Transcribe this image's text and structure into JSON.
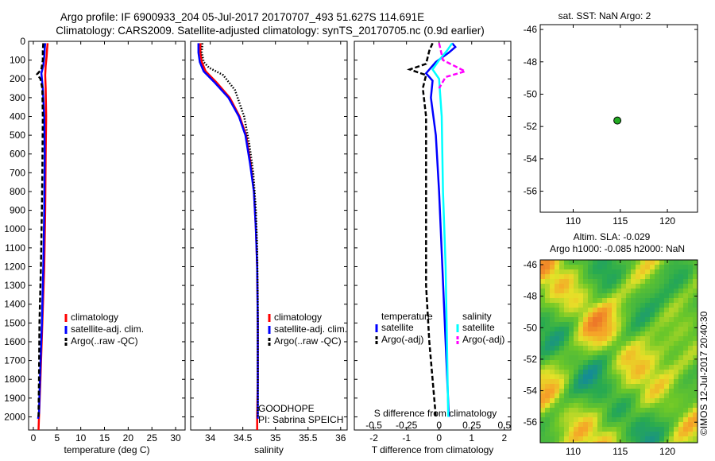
{
  "title_line1": "Argo profile: IF 6900933_204 05-Jul-2017 20170707_493 51.627S 114.691E",
  "title_line2": "Climatology: CARS2009. Satellite-adjusted climatology: synTS_20170705.nc (0.9d earlier)",
  "side_stamp": "©IMOS 12-Jul-2017 20:40:30",
  "colors": {
    "climatology": "#ff0000",
    "satellite": "#0000ff",
    "argo": "#000000",
    "salinity_satellite": "#00ffff",
    "salinity_argo": "#ff00ff",
    "dot": "#22aa22"
  },
  "chart_data": [
    {
      "type": "line",
      "id": "temperature",
      "xlabel": "temperature (deg C)",
      "ylabel": "",
      "xlim": [
        -1,
        32
      ],
      "ylim": [
        2070,
        0
      ],
      "xticks": [
        0,
        5,
        10,
        15,
        20,
        25,
        30
      ],
      "xticklabels": [
        "0",
        "5",
        "10",
        "15",
        "20",
        "25",
        "30"
      ],
      "yticks": [
        0,
        100,
        200,
        300,
        400,
        500,
        600,
        700,
        800,
        900,
        1000,
        1100,
        1200,
        1300,
        1400,
        1500,
        1600,
        1700,
        1800,
        1900,
        2000
      ],
      "yticklabels": [
        "0",
        "100",
        "200",
        "300",
        "400",
        "500",
        "600",
        "700",
        "800",
        "900",
        "1000",
        "1100",
        "1200",
        "1300",
        "1400",
        "1500",
        "1600",
        "1700",
        "1800",
        "1900",
        "2000"
      ],
      "legend": [
        "climatology",
        "satellite-adj. clim.",
        "Argo(..raw -QC)"
      ],
      "legend_loc": "lower-right",
      "series": [
        {
          "name": "climatology",
          "color": "#ff0000",
          "style": "solid",
          "points": [
            [
              3.0,
              10
            ],
            [
              2.9,
              40
            ],
            [
              2.8,
              80
            ],
            [
              2.6,
              130
            ],
            [
              2.5,
              180
            ],
            [
              2.6,
              250
            ],
            [
              2.7,
              400
            ],
            [
              2.6,
              600
            ],
            [
              2.5,
              900
            ],
            [
              2.3,
              1200
            ],
            [
              1.9,
              1500
            ],
            [
              1.5,
              1800
            ],
            [
              1.2,
              2000
            ],
            [
              1.1,
              2070
            ]
          ]
        },
        {
          "name": "satellite-adj. clim.",
          "color": "#0000ff",
          "style": "solid",
          "points": [
            [
              2.5,
              10
            ],
            [
              2.4,
              40
            ],
            [
              2.3,
              80
            ],
            [
              2.1,
              130
            ],
            [
              1.7,
              170
            ],
            [
              2.0,
              250
            ],
            [
              2.3,
              400
            ],
            [
              2.4,
              600
            ],
            [
              2.3,
              900
            ],
            [
              2.1,
              1200
            ],
            [
              1.8,
              1500
            ],
            [
              1.4,
              1800
            ],
            [
              1.2,
              1980
            ],
            [
              1.0,
              2010
            ]
          ]
        },
        {
          "name": "Argo(..raw -QC)",
          "color": "#000000",
          "style": "dashed",
          "points": [
            [
              2.1,
              10
            ],
            [
              2.0,
              50
            ],
            [
              2.0,
              100
            ],
            [
              1.7,
              150
            ],
            [
              0.8,
              175
            ],
            [
              1.5,
              200
            ],
            [
              1.9,
              250
            ],
            [
              2.0,
              400
            ],
            [
              1.9,
              700
            ],
            [
              1.8,
              900
            ],
            [
              1.6,
              1200
            ],
            [
              1.3,
              1500
            ],
            [
              1.2,
              1800
            ],
            [
              1.1,
              2000
            ]
          ]
        }
      ]
    },
    {
      "type": "line",
      "id": "salinity",
      "xlabel": "salinity",
      "xlim": [
        33.7,
        36.1
      ],
      "ylim": [
        2070,
        0
      ],
      "xticks": [
        34,
        34.5,
        35,
        35.5,
        36
      ],
      "xticklabels": [
        "34",
        "34.5",
        "35",
        "35.5",
        "36"
      ],
      "legend": [
        "climatology",
        "satellite-adj. clim.",
        "Argo(..raw -QC)"
      ],
      "legend_loc": "lower-right",
      "annotations": [
        "GOODHOPE",
        "PI: Sabrina SPEICH"
      ],
      "series": [
        {
          "name": "climatology",
          "color": "#ff0000",
          "style": "solid",
          "points": [
            [
              33.85,
              10
            ],
            [
              33.85,
              60
            ],
            [
              33.87,
              110
            ],
            [
              33.93,
              160
            ],
            [
              34.1,
              220
            ],
            [
              34.3,
              300
            ],
            [
              34.45,
              400
            ],
            [
              34.55,
              500
            ],
            [
              34.62,
              650
            ],
            [
              34.67,
              800
            ],
            [
              34.7,
              1000
            ],
            [
              34.72,
              1200
            ],
            [
              34.73,
              1500
            ],
            [
              34.73,
              1800
            ],
            [
              34.72,
              2000
            ],
            [
              34.72,
              2070
            ]
          ]
        },
        {
          "name": "satellite-adj. clim.",
          "color": "#0000ff",
          "style": "solid",
          "points": [
            [
              33.82,
              10
            ],
            [
              33.82,
              60
            ],
            [
              33.84,
              110
            ],
            [
              33.9,
              160
            ],
            [
              34.07,
              220
            ],
            [
              34.28,
              300
            ],
            [
              34.44,
              400
            ],
            [
              34.54,
              500
            ],
            [
              34.61,
              650
            ],
            [
              34.67,
              800
            ],
            [
              34.7,
              1000
            ],
            [
              34.72,
              1200
            ],
            [
              34.73,
              1500
            ],
            [
              34.73,
              1800
            ],
            [
              34.73,
              2010
            ]
          ]
        },
        {
          "name": "Argo(..raw -QC)",
          "color": "#000000",
          "style": "dotted",
          "points": [
            [
              33.88,
              10
            ],
            [
              33.87,
              60
            ],
            [
              33.9,
              110
            ],
            [
              33.98,
              140
            ],
            [
              34.2,
              180
            ],
            [
              34.38,
              260
            ],
            [
              34.52,
              400
            ],
            [
              34.6,
              550
            ],
            [
              34.66,
              700
            ],
            [
              34.7,
              900
            ],
            [
              34.72,
              1100
            ],
            [
              34.73,
              1400
            ],
            [
              34.73,
              1700
            ],
            [
              34.73,
              2000
            ]
          ]
        }
      ]
    },
    {
      "type": "line",
      "id": "difference",
      "xlabel": "T difference from climatology",
      "xlim": [
        -2.6,
        2.2
      ],
      "ylim": [
        2070,
        0
      ],
      "xticks": [
        -2,
        -1,
        0,
        1,
        2
      ],
      "xticklabels": [
        "-2",
        "-1",
        "0",
        "1",
        "2"
      ],
      "secondary_axis": {
        "label": "S difference from climatology",
        "ticks": [
          -0.5,
          -0.25,
          0,
          0.25,
          0.5
        ],
        "ticklabels": [
          "-0.5",
          "-0.25",
          "0",
          "0.25",
          "0.5"
        ]
      },
      "legend_headers": [
        "temperature",
        "salinity"
      ],
      "legend": [
        "satellite",
        "Argo(-adj)",
        "satellite",
        "Argo(-adj)"
      ],
      "series": [
        {
          "name": "temperature satellite",
          "color": "#0000ff",
          "style": "solid",
          "points": [
            [
              0.4,
              10
            ],
            [
              0.5,
              30
            ],
            [
              0.3,
              60
            ],
            [
              -0.1,
              110
            ],
            [
              -0.4,
              170
            ],
            [
              -0.2,
              210
            ],
            [
              -0.25,
              300
            ],
            [
              -0.1,
              500
            ],
            [
              0,
              800
            ],
            [
              0.1,
              1200
            ],
            [
              0.2,
              1600
            ],
            [
              0.3,
              2000
            ]
          ]
        },
        {
          "name": "temperature Argo(-adj)",
          "color": "#000000",
          "style": "dashed",
          "points": [
            [
              -0.2,
              10
            ],
            [
              -0.3,
              50
            ],
            [
              -0.4,
              120
            ],
            [
              -0.9,
              150
            ],
            [
              -0.4,
              180
            ],
            [
              -0.5,
              250
            ],
            [
              -0.4,
              400
            ],
            [
              -0.4,
              700
            ],
            [
              -0.4,
              1000
            ],
            [
              -0.4,
              1300
            ],
            [
              -0.3,
              1600
            ],
            [
              -0.1,
              2000
            ]
          ]
        },
        {
          "name": "salinity satellite",
          "color": "#00ffff",
          "style": "solid",
          "points": [
            [
              0.1,
              10
            ],
            [
              0.06,
              50
            ],
            [
              0.0,
              100
            ],
            [
              -0.05,
              150
            ],
            [
              0.0,
              200
            ],
            [
              0.02,
              400
            ],
            [
              0.03,
              800
            ],
            [
              0.05,
              1200
            ],
            [
              0.06,
              1600
            ],
            [
              0.07,
              2000
            ]
          ]
        },
        {
          "name": "salinity Argo(-adj)",
          "color": "#ff00ff",
          "style": "dashed",
          "points": [
            [
              0.0,
              10
            ],
            [
              0.03,
              100
            ],
            [
              0.2,
              160
            ],
            [
              0.05,
              190
            ],
            [
              0.0,
              250
            ]
          ]
        }
      ]
    },
    {
      "type": "scatter",
      "id": "location",
      "title": "sat. SST: NaN Argo: 2",
      "xlim": [
        106.5,
        123.2
      ],
      "ylim": [
        -57.3,
        -45.7
      ],
      "xticks": [
        110,
        115,
        120
      ],
      "xticklabels": [
        "110",
        "115",
        "120"
      ],
      "yticks": [
        -46,
        -48,
        -50,
        -52,
        -54,
        -56
      ],
      "yticklabels": [
        "-46",
        "-48",
        "-50",
        "-52",
        "-54",
        "-56"
      ],
      "points": [
        {
          "x": 114.69,
          "y": -51.63
        }
      ]
    },
    {
      "type": "heatmap",
      "id": "altimetry",
      "title_line1": "Altim. SLA: -0.029",
      "title_line2": "Argo h1000: -0.085 h2000: NaN",
      "xlim": [
        106.5,
        123.2
      ],
      "ylim": [
        -57.3,
        -45.7
      ],
      "xticks": [
        110,
        115,
        120
      ],
      "xticklabels": [
        "110",
        "115",
        "120"
      ],
      "yticks": [
        -46,
        -48,
        -50,
        -52,
        -54,
        -56
      ],
      "yticklabels": [
        "-46",
        "-48",
        "-50",
        "-52",
        "-54",
        "-56"
      ]
    }
  ]
}
